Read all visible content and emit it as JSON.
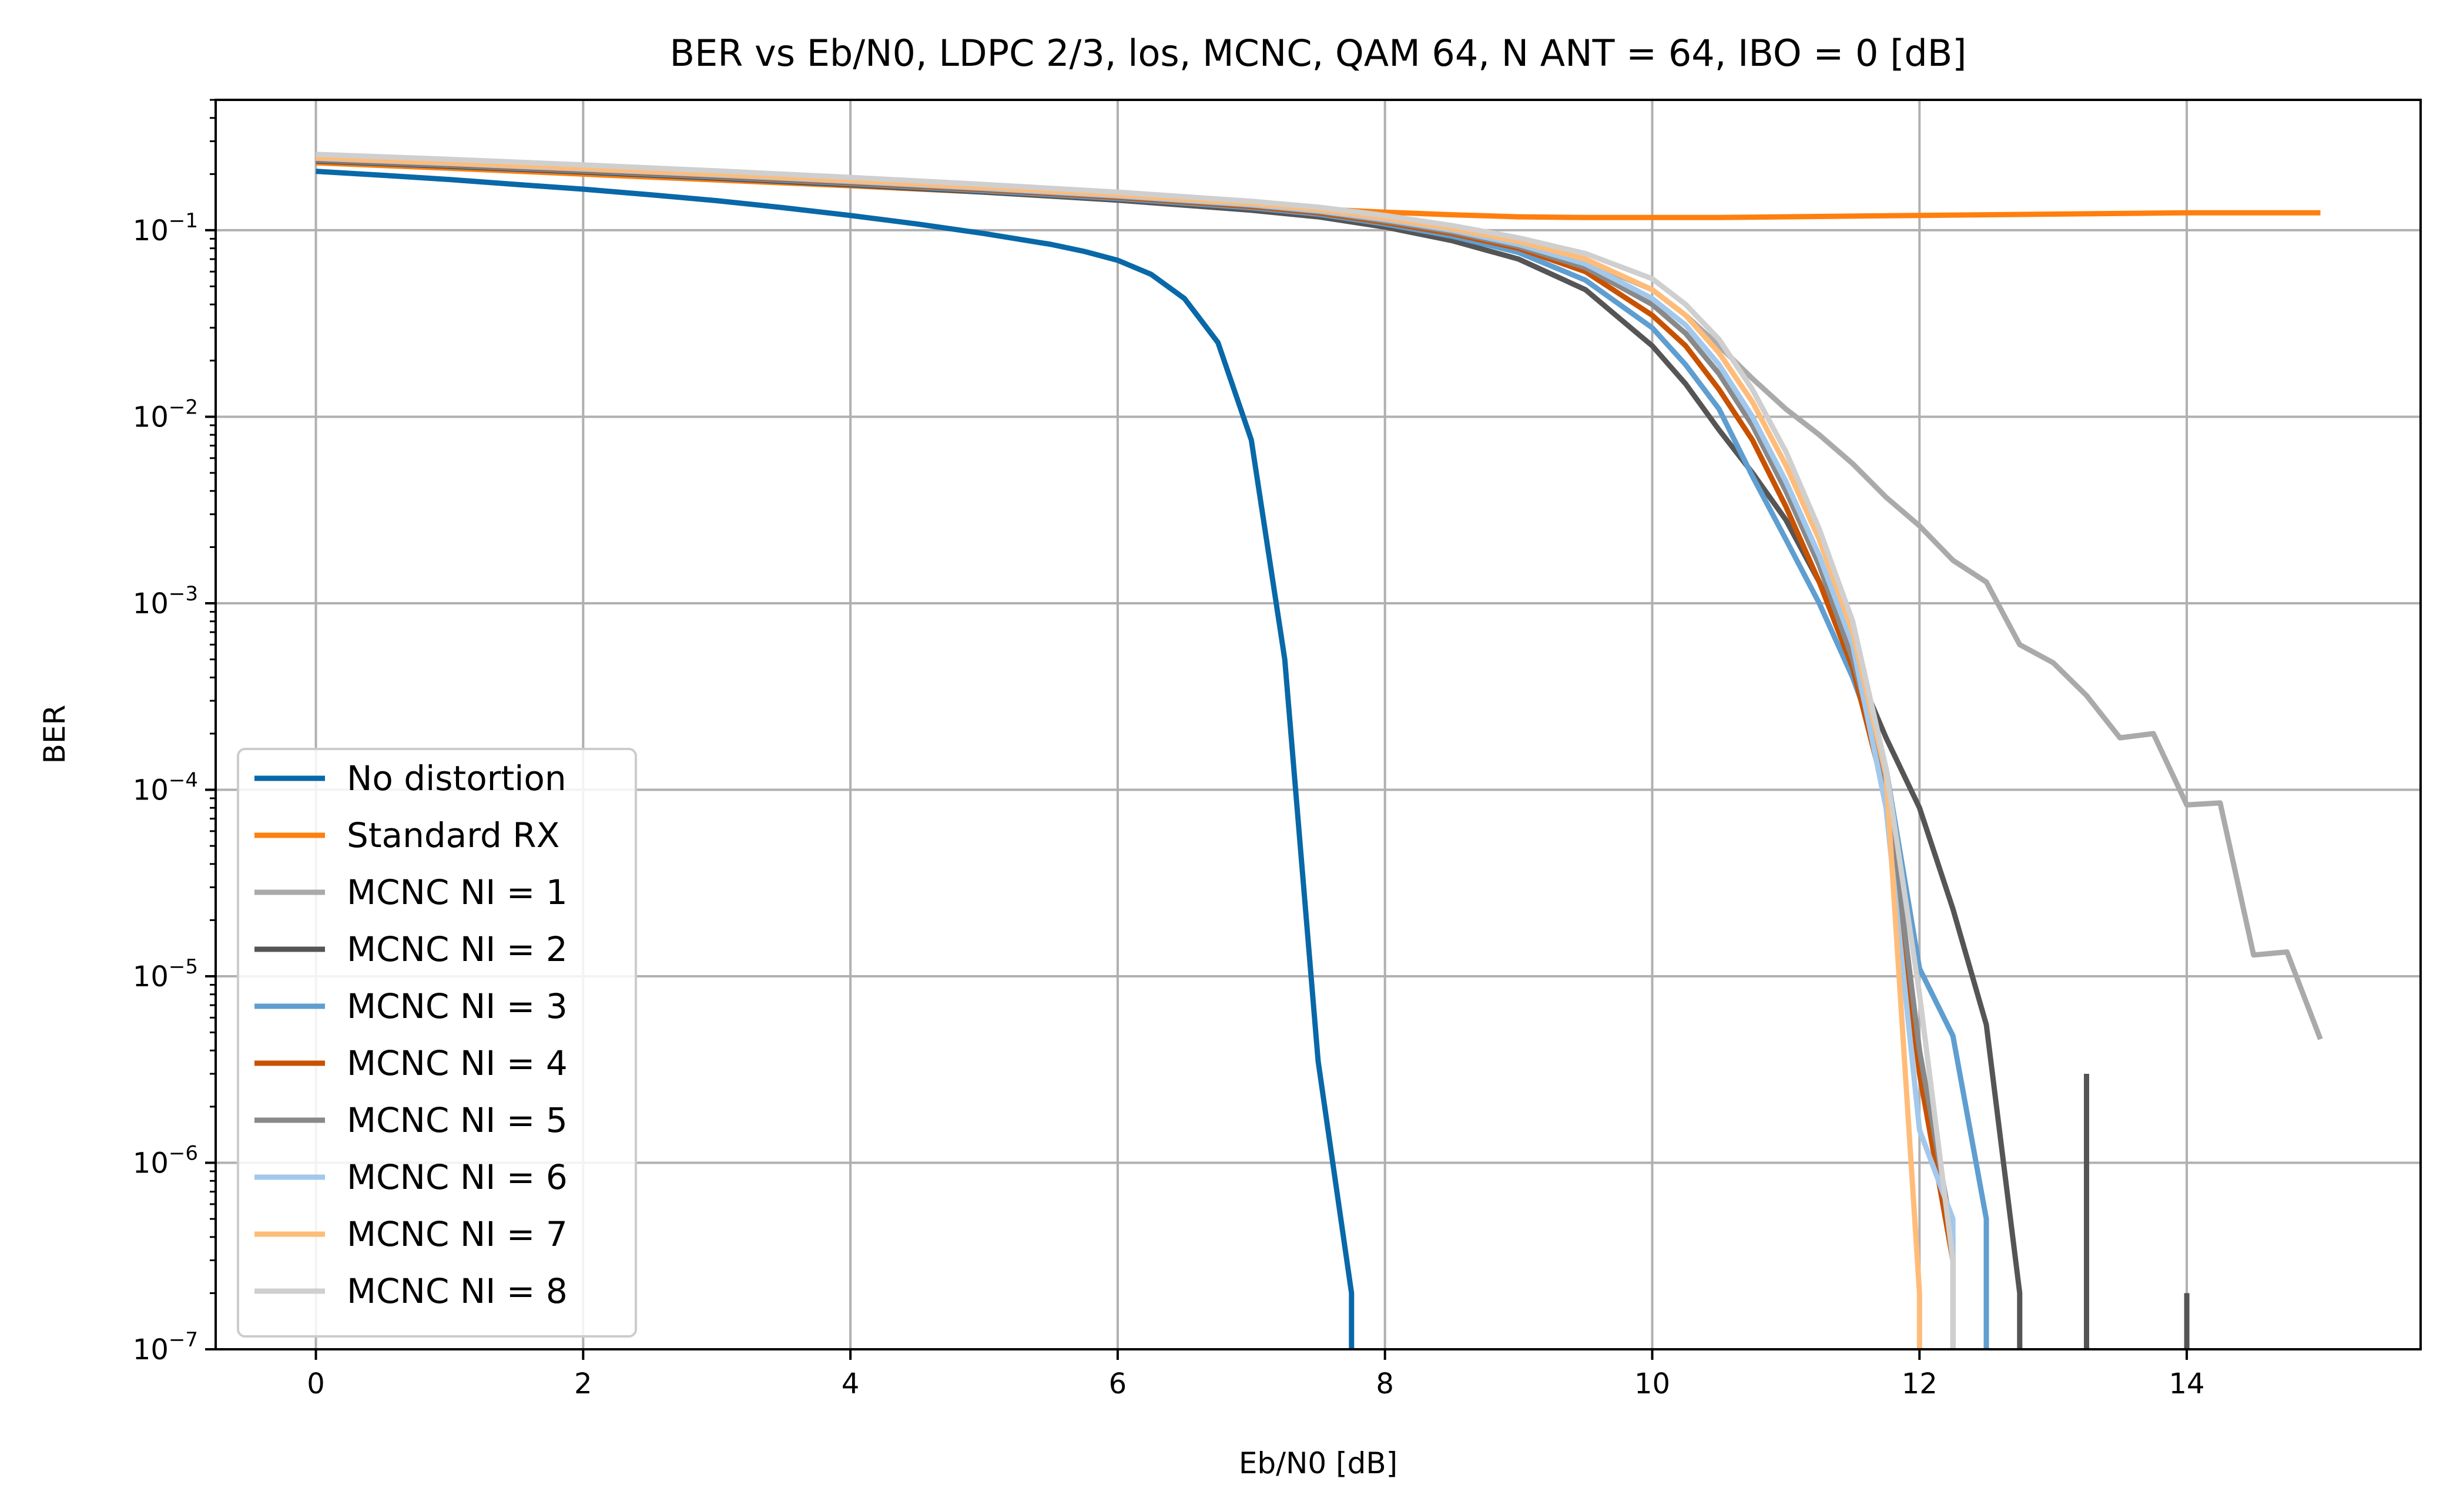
{
  "chart_data": {
    "type": "line",
    "title": "BER vs Eb/N0, LDPC 2/3, los, MCNC, QAM 64, N ANT = 64, IBO = 0 [dB]",
    "xlabel": "Eb/N0 [dB]",
    "ylabel": "BER",
    "xlim": [
      -0.75,
      15.75
    ],
    "ylim": [
      1e-07,
      0.5
    ],
    "y_scale": "log",
    "grid": true,
    "legend_position": "lower-left",
    "x_ticks": [
      0,
      2,
      4,
      6,
      8,
      10,
      12,
      14
    ],
    "y_ticks": [
      {
        "value": 1e-07,
        "base": "10",
        "exp": "−7"
      },
      {
        "value": 1e-06,
        "base": "10",
        "exp": "−6"
      },
      {
        "value": 1e-05,
        "base": "10",
        "exp": "−5"
      },
      {
        "value": 0.0001,
        "base": "10",
        "exp": "−4"
      },
      {
        "value": 0.001,
        "base": "10",
        "exp": "−3"
      },
      {
        "value": 0.01,
        "base": "10",
        "exp": "−2"
      },
      {
        "value": 0.1,
        "base": "10",
        "exp": "−1"
      }
    ],
    "series": [
      {
        "name": "No distortion",
        "color": "#0868a8",
        "x": [
          0,
          0.5,
          1,
          1.5,
          2,
          2.5,
          3,
          3.5,
          4,
          4.5,
          5,
          5.5,
          5.75,
          6,
          6.25,
          6.5,
          6.75,
          7,
          7.25,
          7.5,
          7.75,
          7.75
        ],
        "y": [
          0.207,
          0.197,
          0.187,
          0.176,
          0.166,
          0.155,
          0.144,
          0.132,
          0.12,
          0.108,
          0.096,
          0.084,
          0.077,
          0.069,
          0.058,
          0.043,
          0.025,
          0.0075,
          0.0005,
          3.5e-06,
          2e-07,
          1e-07
        ]
      },
      {
        "name": "Standard RX",
        "color": "#ff7f0e",
        "x": [
          0,
          1,
          2,
          3,
          4,
          5,
          6,
          7,
          7.5,
          8,
          8.5,
          9,
          9.5,
          10,
          10.5,
          11,
          11.5,
          12,
          12.5,
          13,
          13.5,
          14,
          14.5,
          15
        ],
        "y": [
          0.23,
          0.215,
          0.2,
          0.186,
          0.173,
          0.16,
          0.148,
          0.136,
          0.13,
          0.125,
          0.121,
          0.118,
          0.117,
          0.117,
          0.117,
          0.118,
          0.119,
          0.12,
          0.121,
          0.122,
          0.123,
          0.124,
          0.124,
          0.124
        ]
      },
      {
        "name": "MCNC NI = 1",
        "color": "#aaaaaa",
        "x": [
          0,
          1,
          2,
          3,
          4,
          5,
          6,
          7,
          7.5,
          8,
          8.5,
          9,
          9.5,
          10,
          10.25,
          10.5,
          10.75,
          11,
          11.25,
          11.5,
          11.75,
          12,
          12.25,
          12.5,
          12.75,
          13,
          13.25,
          13.5,
          13.75,
          14,
          14.25,
          14.5,
          14.75,
          15
        ],
        "y": [
          0.24,
          0.225,
          0.21,
          0.195,
          0.18,
          0.165,
          0.15,
          0.135,
          0.125,
          0.112,
          0.1,
          0.085,
          0.068,
          0.048,
          0.035,
          0.024,
          0.016,
          0.011,
          0.008,
          0.0056,
          0.0037,
          0.0026,
          0.0017,
          0.0013,
          0.0006,
          0.00048,
          0.00032,
          0.00019,
          0.0002,
          8.3e-05,
          8.5e-05,
          1.3e-05,
          1.35e-05,
          4.6e-06
        ]
      },
      {
        "name": "MCNC NI = 2",
        "color": "#555555",
        "x": [
          0,
          1,
          2,
          3,
          4,
          5,
          6,
          7,
          7.5,
          8,
          8.5,
          9,
          9.5,
          10,
          10.25,
          10.5,
          10.75,
          11,
          11.25,
          11.5,
          11.75,
          12,
          12.25,
          12.5,
          12.75,
          12.75
        ],
        "y": [
          0.235,
          0.22,
          0.205,
          0.19,
          0.175,
          0.16,
          0.145,
          0.128,
          0.118,
          0.104,
          0.088,
          0.07,
          0.048,
          0.024,
          0.015,
          0.0085,
          0.005,
          0.0028,
          0.0013,
          0.0005,
          0.00019,
          8e-05,
          2.3e-05,
          5.5e-06,
          2e-07,
          1e-07
        ]
      },
      {
        "name": "MCNC NI = 3",
        "color": "#5f9ed1",
        "x": [
          0,
          1,
          2,
          3,
          4,
          5,
          6,
          7,
          7.5,
          8,
          8.5,
          9,
          9.5,
          10,
          10.25,
          10.5,
          10.75,
          11,
          11.25,
          11.5,
          11.75,
          12,
          12.25,
          12.5,
          12.5
        ],
        "y": [
          0.238,
          0.223,
          0.208,
          0.193,
          0.178,
          0.163,
          0.148,
          0.132,
          0.122,
          0.108,
          0.093,
          0.076,
          0.054,
          0.03,
          0.019,
          0.011,
          0.0048,
          0.0022,
          0.001,
          0.0004,
          0.00013,
          1.1e-05,
          4.8e-06,
          5e-07,
          1e-07
        ]
      },
      {
        "name": "MCNC NI = 4",
        "color": "#c85200",
        "x": [
          0,
          1,
          2,
          3,
          4,
          5,
          6,
          7,
          7.5,
          8,
          8.5,
          9,
          9.5,
          10,
          10.25,
          10.5,
          10.75,
          11,
          11.25,
          11.5,
          11.75,
          12,
          12.25,
          12.25
        ],
        "y": [
          0.24,
          0.225,
          0.21,
          0.195,
          0.18,
          0.165,
          0.15,
          0.134,
          0.124,
          0.11,
          0.096,
          0.08,
          0.06,
          0.035,
          0.024,
          0.014,
          0.0075,
          0.0033,
          0.0013,
          0.00045,
          9e-05,
          3e-06,
          3e-07,
          1e-07
        ]
      },
      {
        "name": "MCNC NI = 5",
        "color": "#898989",
        "x": [
          0,
          1,
          2,
          3,
          4,
          5,
          6,
          7,
          7.5,
          8,
          8.5,
          9,
          9.5,
          10,
          10.25,
          10.5,
          10.75,
          11,
          11.25,
          11.5,
          11.75,
          12,
          12.25,
          12.25
        ],
        "y": [
          0.242,
          0.227,
          0.212,
          0.197,
          0.182,
          0.167,
          0.152,
          0.136,
          0.126,
          0.112,
          0.098,
          0.082,
          0.063,
          0.04,
          0.028,
          0.017,
          0.009,
          0.004,
          0.0016,
          0.0005,
          0.00011,
          4e-06,
          4e-07,
          1e-07
        ]
      },
      {
        "name": "MCNC NI = 6",
        "color": "#a2c8ec",
        "x": [
          0,
          1,
          2,
          3,
          4,
          5,
          6,
          7,
          7.5,
          8,
          8.5,
          9,
          9.5,
          10,
          10.25,
          10.5,
          10.75,
          11,
          11.25,
          11.5,
          11.75,
          12,
          12.25,
          12.25
        ],
        "y": [
          0.243,
          0.228,
          0.213,
          0.198,
          0.183,
          0.168,
          0.153,
          0.137,
          0.127,
          0.114,
          0.1,
          0.084,
          0.066,
          0.043,
          0.031,
          0.019,
          0.01,
          0.0045,
          0.0018,
          0.0006,
          8e-05,
          1.5e-06,
          5e-07,
          1e-07
        ]
      },
      {
        "name": "MCNC NI = 7",
        "color": "#ffbc79",
        "x": [
          0,
          1,
          2,
          3,
          4,
          5,
          6,
          7,
          7.5,
          8,
          8.5,
          9,
          9.5,
          10,
          10.25,
          10.5,
          10.75,
          11,
          11.25,
          11.5,
          11.75,
          12,
          12
        ],
        "y": [
          0.245,
          0.23,
          0.215,
          0.2,
          0.185,
          0.17,
          0.155,
          0.139,
          0.129,
          0.116,
          0.102,
          0.087,
          0.07,
          0.048,
          0.035,
          0.022,
          0.012,
          0.0055,
          0.0022,
          0.0007,
          0.00012,
          2e-07,
          1e-07
        ]
      },
      {
        "name": "MCNC NI = 8",
        "color": "#cfcfcf",
        "x": [
          0,
          1,
          2,
          3,
          4,
          5,
          6,
          7,
          7.5,
          8,
          8.5,
          9,
          9.5,
          10,
          10.25,
          10.5,
          10.75,
          11,
          11.25,
          11.5,
          11.75,
          12,
          12.25,
          12.25
        ],
        "y": [
          0.255,
          0.24,
          0.224,
          0.208,
          0.192,
          0.176,
          0.16,
          0.143,
          0.133,
          0.12,
          0.106,
          0.091,
          0.075,
          0.055,
          0.04,
          0.026,
          0.014,
          0.0065,
          0.0025,
          0.0008,
          0.00013,
          8e-06,
          3e-07,
          1e-07
        ]
      }
    ],
    "extra_segments": [
      {
        "color": "#555555",
        "x": [
          13.25,
          13.25
        ],
        "y": [
          1e-07,
          3e-06
        ]
      },
      {
        "color": "#555555",
        "x": [
          14,
          14
        ],
        "y": [
          1e-07,
          2e-07
        ]
      }
    ]
  }
}
